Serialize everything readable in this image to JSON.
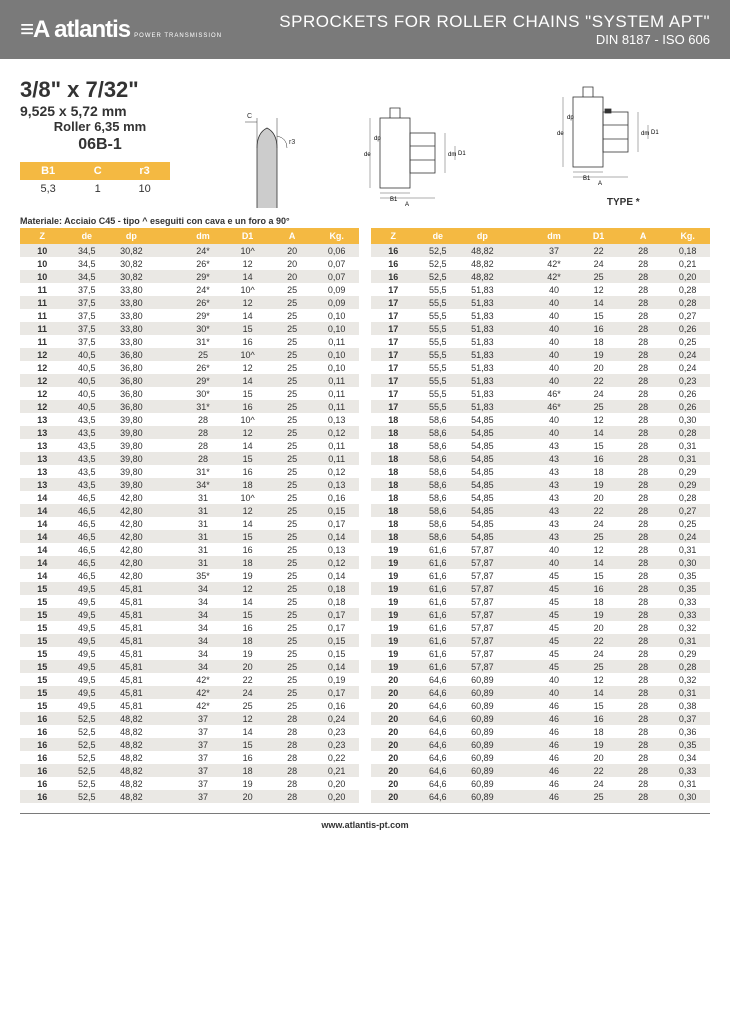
{
  "header": {
    "brand": "atlantis",
    "brand_prefix": "≡A",
    "brand_sub": "POWER TRANSMISSION",
    "title_main": "SPROCKETS FOR ROLLER CHAINS \"SYSTEM APT\"",
    "title_sub": "DIN 8187 - ISO 606"
  },
  "spec": {
    "size_imperial": "3/8\" x 7/32\"",
    "size_metric": "9,525 x 5,72 mm",
    "roller": "Roller 6,35 mm",
    "code": "06B-1"
  },
  "mini_table": {
    "headers": [
      "B1",
      "C",
      "r3"
    ],
    "row": [
      "5,3",
      "1",
      "10"
    ]
  },
  "material": "Materiale: Acciaio C45 - tipo ^ eseguiti con cava e un foro a 90°",
  "type_label": "TYPE *",
  "colors": {
    "header_bg": "#7a7a7a",
    "accent": "#f4b942",
    "row_alt": "#eae8e4"
  },
  "table_headers": [
    "Z",
    "de",
    "dp",
    "",
    "dm",
    "D1",
    "A",
    "Kg."
  ],
  "table1": [
    [
      "10",
      "34,5",
      "30,82",
      "",
      "24*",
      "10^",
      "20",
      "0,06"
    ],
    [
      "10",
      "34,5",
      "30,82",
      "",
      "26*",
      "12",
      "20",
      "0,07"
    ],
    [
      "10",
      "34,5",
      "30,82",
      "",
      "29*",
      "14",
      "20",
      "0,07"
    ],
    [
      "11",
      "37,5",
      "33,80",
      "",
      "24*",
      "10^",
      "25",
      "0,09"
    ],
    [
      "11",
      "37,5",
      "33,80",
      "",
      "26*",
      "12",
      "25",
      "0,09"
    ],
    [
      "11",
      "37,5",
      "33,80",
      "",
      "29*",
      "14",
      "25",
      "0,10"
    ],
    [
      "11",
      "37,5",
      "33,80",
      "",
      "30*",
      "15",
      "25",
      "0,10"
    ],
    [
      "11",
      "37,5",
      "33,80",
      "",
      "31*",
      "16",
      "25",
      "0,11"
    ],
    [
      "12",
      "40,5",
      "36,80",
      "",
      "25",
      "10^",
      "25",
      "0,10"
    ],
    [
      "12",
      "40,5",
      "36,80",
      "",
      "26*",
      "12",
      "25",
      "0,10"
    ],
    [
      "12",
      "40,5",
      "36,80",
      "",
      "29*",
      "14",
      "25",
      "0,11"
    ],
    [
      "12",
      "40,5",
      "36,80",
      "",
      "30*",
      "15",
      "25",
      "0,11"
    ],
    [
      "12",
      "40,5",
      "36,80",
      "",
      "31*",
      "16",
      "25",
      "0,11"
    ],
    [
      "13",
      "43,5",
      "39,80",
      "",
      "28",
      "10^",
      "25",
      "0,13"
    ],
    [
      "13",
      "43,5",
      "39,80",
      "",
      "28",
      "12",
      "25",
      "0,12"
    ],
    [
      "13",
      "43,5",
      "39,80",
      "",
      "28",
      "14",
      "25",
      "0,11"
    ],
    [
      "13",
      "43,5",
      "39,80",
      "",
      "28",
      "15",
      "25",
      "0,11"
    ],
    [
      "13",
      "43,5",
      "39,80",
      "",
      "31*",
      "16",
      "25",
      "0,12"
    ],
    [
      "13",
      "43,5",
      "39,80",
      "",
      "34*",
      "18",
      "25",
      "0,13"
    ],
    [
      "14",
      "46,5",
      "42,80",
      "",
      "31",
      "10^",
      "25",
      "0,16"
    ],
    [
      "14",
      "46,5",
      "42,80",
      "",
      "31",
      "12",
      "25",
      "0,15"
    ],
    [
      "14",
      "46,5",
      "42,80",
      "",
      "31",
      "14",
      "25",
      "0,17"
    ],
    [
      "14",
      "46,5",
      "42,80",
      "",
      "31",
      "15",
      "25",
      "0,14"
    ],
    [
      "14",
      "46,5",
      "42,80",
      "",
      "31",
      "16",
      "25",
      "0,13"
    ],
    [
      "14",
      "46,5",
      "42,80",
      "",
      "31",
      "18",
      "25",
      "0,12"
    ],
    [
      "14",
      "46,5",
      "42,80",
      "",
      "35*",
      "19",
      "25",
      "0,14"
    ],
    [
      "15",
      "49,5",
      "45,81",
      "",
      "34",
      "12",
      "25",
      "0,18"
    ],
    [
      "15",
      "49,5",
      "45,81",
      "",
      "34",
      "14",
      "25",
      "0,18"
    ],
    [
      "15",
      "49,5",
      "45,81",
      "",
      "34",
      "15",
      "25",
      "0,17"
    ],
    [
      "15",
      "49,5",
      "45,81",
      "",
      "34",
      "16",
      "25",
      "0,17"
    ],
    [
      "15",
      "49,5",
      "45,81",
      "",
      "34",
      "18",
      "25",
      "0,15"
    ],
    [
      "15",
      "49,5",
      "45,81",
      "",
      "34",
      "19",
      "25",
      "0,15"
    ],
    [
      "15",
      "49,5",
      "45,81",
      "",
      "34",
      "20",
      "25",
      "0,14"
    ],
    [
      "15",
      "49,5",
      "45,81",
      "",
      "42*",
      "22",
      "25",
      "0,19"
    ],
    [
      "15",
      "49,5",
      "45,81",
      "",
      "42*",
      "24",
      "25",
      "0,17"
    ],
    [
      "15",
      "49,5",
      "45,81",
      "",
      "42*",
      "25",
      "25",
      "0,16"
    ],
    [
      "16",
      "52,5",
      "48,82",
      "",
      "37",
      "12",
      "28",
      "0,24"
    ],
    [
      "16",
      "52,5",
      "48,82",
      "",
      "37",
      "14",
      "28",
      "0,23"
    ],
    [
      "16",
      "52,5",
      "48,82",
      "",
      "37",
      "15",
      "28",
      "0,23"
    ],
    [
      "16",
      "52,5",
      "48,82",
      "",
      "37",
      "16",
      "28",
      "0,22"
    ],
    [
      "16",
      "52,5",
      "48,82",
      "",
      "37",
      "18",
      "28",
      "0,21"
    ],
    [
      "16",
      "52,5",
      "48,82",
      "",
      "37",
      "19",
      "28",
      "0,20"
    ],
    [
      "16",
      "52,5",
      "48,82",
      "",
      "37",
      "20",
      "28",
      "0,20"
    ]
  ],
  "table2": [
    [
      "16",
      "52,5",
      "48,82",
      "",
      "37",
      "22",
      "28",
      "0,18"
    ],
    [
      "16",
      "52,5",
      "48,82",
      "",
      "42*",
      "24",
      "28",
      "0,21"
    ],
    [
      "16",
      "52,5",
      "48,82",
      "",
      "42*",
      "25",
      "28",
      "0,20"
    ],
    [
      "17",
      "55,5",
      "51,83",
      "",
      "40",
      "12",
      "28",
      "0,28"
    ],
    [
      "17",
      "55,5",
      "51,83",
      "",
      "40",
      "14",
      "28",
      "0,28"
    ],
    [
      "17",
      "55,5",
      "51,83",
      "",
      "40",
      "15",
      "28",
      "0,27"
    ],
    [
      "17",
      "55,5",
      "51,83",
      "",
      "40",
      "16",
      "28",
      "0,26"
    ],
    [
      "17",
      "55,5",
      "51,83",
      "",
      "40",
      "18",
      "28",
      "0,25"
    ],
    [
      "17",
      "55,5",
      "51,83",
      "",
      "40",
      "19",
      "28",
      "0,24"
    ],
    [
      "17",
      "55,5",
      "51,83",
      "",
      "40",
      "20",
      "28",
      "0,24"
    ],
    [
      "17",
      "55,5",
      "51,83",
      "",
      "40",
      "22",
      "28",
      "0,23"
    ],
    [
      "17",
      "55,5",
      "51,83",
      "",
      "46*",
      "24",
      "28",
      "0,26"
    ],
    [
      "17",
      "55,5",
      "51,83",
      "",
      "46*",
      "25",
      "28",
      "0,26"
    ],
    [
      "18",
      "58,6",
      "54,85",
      "",
      "40",
      "12",
      "28",
      "0,30"
    ],
    [
      "18",
      "58,6",
      "54,85",
      "",
      "40",
      "14",
      "28",
      "0,28"
    ],
    [
      "18",
      "58,6",
      "54,85",
      "",
      "43",
      "15",
      "28",
      "0,31"
    ],
    [
      "18",
      "58,6",
      "54,85",
      "",
      "43",
      "16",
      "28",
      "0,31"
    ],
    [
      "18",
      "58,6",
      "54,85",
      "",
      "43",
      "18",
      "28",
      "0,29"
    ],
    [
      "18",
      "58,6",
      "54,85",
      "",
      "43",
      "19",
      "28",
      "0,29"
    ],
    [
      "18",
      "58,6",
      "54,85",
      "",
      "43",
      "20",
      "28",
      "0,28"
    ],
    [
      "18",
      "58,6",
      "54,85",
      "",
      "43",
      "22",
      "28",
      "0,27"
    ],
    [
      "18",
      "58,6",
      "54,85",
      "",
      "43",
      "24",
      "28",
      "0,25"
    ],
    [
      "18",
      "58,6",
      "54,85",
      "",
      "43",
      "25",
      "28",
      "0,24"
    ],
    [
      "19",
      "61,6",
      "57,87",
      "",
      "40",
      "12",
      "28",
      "0,31"
    ],
    [
      "19",
      "61,6",
      "57,87",
      "",
      "40",
      "14",
      "28",
      "0,30"
    ],
    [
      "19",
      "61,6",
      "57,87",
      "",
      "45",
      "15",
      "28",
      "0,35"
    ],
    [
      "19",
      "61,6",
      "57,87",
      "",
      "45",
      "16",
      "28",
      "0,35"
    ],
    [
      "19",
      "61,6",
      "57,87",
      "",
      "45",
      "18",
      "28",
      "0,33"
    ],
    [
      "19",
      "61,6",
      "57,87",
      "",
      "45",
      "19",
      "28",
      "0,33"
    ],
    [
      "19",
      "61,6",
      "57,87",
      "",
      "45",
      "20",
      "28",
      "0,32"
    ],
    [
      "19",
      "61,6",
      "57,87",
      "",
      "45",
      "22",
      "28",
      "0,31"
    ],
    [
      "19",
      "61,6",
      "57,87",
      "",
      "45",
      "24",
      "28",
      "0,29"
    ],
    [
      "19",
      "61,6",
      "57,87",
      "",
      "45",
      "25",
      "28",
      "0,28"
    ],
    [
      "20",
      "64,6",
      "60,89",
      "",
      "40",
      "12",
      "28",
      "0,32"
    ],
    [
      "20",
      "64,6",
      "60,89",
      "",
      "40",
      "14",
      "28",
      "0,31"
    ],
    [
      "20",
      "64,6",
      "60,89",
      "",
      "46",
      "15",
      "28",
      "0,38"
    ],
    [
      "20",
      "64,6",
      "60,89",
      "",
      "46",
      "16",
      "28",
      "0,37"
    ],
    [
      "20",
      "64,6",
      "60,89",
      "",
      "46",
      "18",
      "28",
      "0,36"
    ],
    [
      "20",
      "64,6",
      "60,89",
      "",
      "46",
      "19",
      "28",
      "0,35"
    ],
    [
      "20",
      "64,6",
      "60,89",
      "",
      "46",
      "20",
      "28",
      "0,34"
    ],
    [
      "20",
      "64,6",
      "60,89",
      "",
      "46",
      "22",
      "28",
      "0,33"
    ],
    [
      "20",
      "64,6",
      "60,89",
      "",
      "46",
      "24",
      "28",
      "0,31"
    ],
    [
      "20",
      "64,6",
      "60,89",
      "",
      "46",
      "25",
      "28",
      "0,30"
    ]
  ],
  "footer": "www.atlantis-pt.com"
}
